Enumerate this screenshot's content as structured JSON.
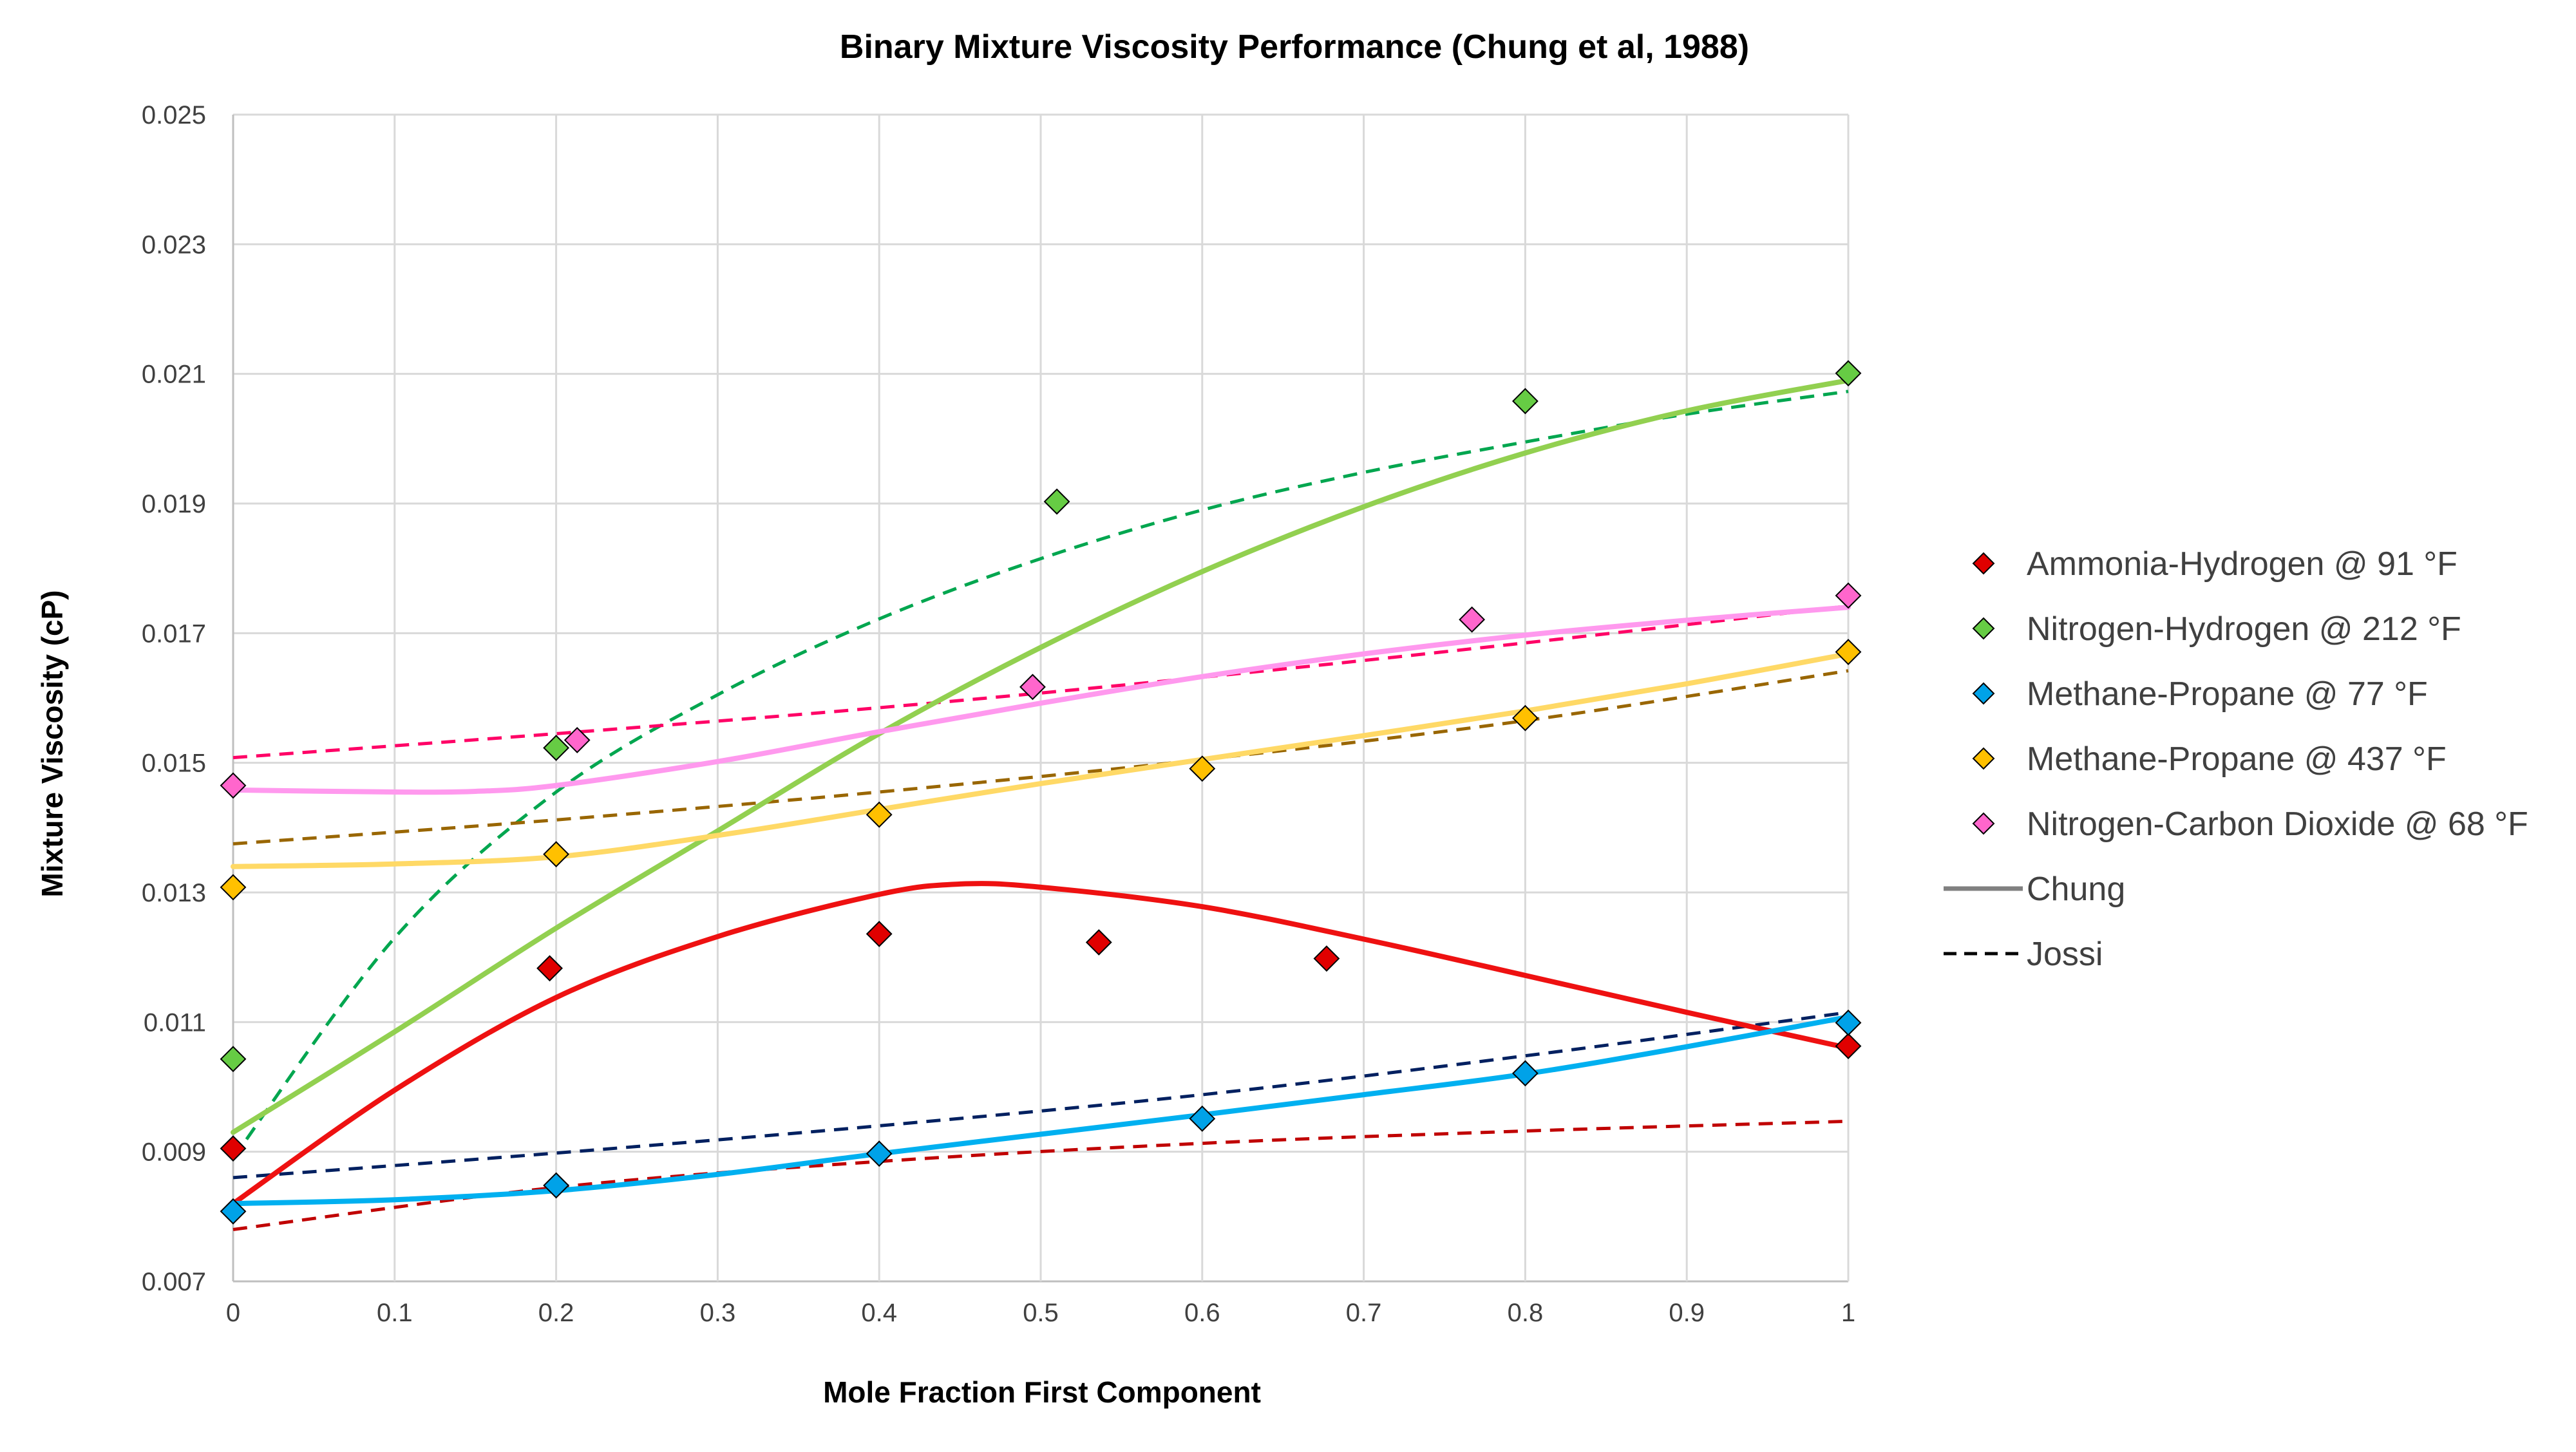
{
  "chart_data": {
    "type": "scatter",
    "title": "Binary Mixture Viscosity Performance (Chung et al, 1988)",
    "xlabel": "Mole Fraction First Component",
    "ylabel": "Mixture Viscosity (cP)",
    "xlim": [
      0,
      1
    ],
    "ylim": [
      0.007,
      0.025
    ],
    "x_ticks": [
      0,
      0.1,
      0.2,
      0.3,
      0.4,
      0.5,
      0.6,
      0.7,
      0.8,
      0.9,
      1
    ],
    "x_tick_labels": [
      "0",
      "0.1",
      "0.2",
      "0.3",
      "0.4",
      "0.5",
      "0.6",
      "0.7",
      "0.8",
      "0.9",
      "1"
    ],
    "y_ticks": [
      0.007,
      0.009,
      0.011,
      0.013,
      0.015,
      0.017,
      0.019,
      0.021,
      0.023,
      0.025
    ],
    "y_tick_labels": [
      "0.007",
      "0.009",
      "0.011",
      "0.013",
      "0.015",
      "0.017",
      "0.019",
      "0.021",
      "0.023",
      "0.025"
    ],
    "grid": true,
    "legend_position": "right",
    "series": [
      {
        "name": "Ammonia-Hydrogen @ 91 °F",
        "color": "#e00000",
        "chung_color": "#ee1111",
        "jossi_color": "#c00000",
        "points": [
          [
            0,
            0.00905
          ],
          [
            0.196,
            0.01183
          ],
          [
            0.4,
            0.01236
          ],
          [
            0.536,
            0.01223
          ],
          [
            0.677,
            0.01198
          ],
          [
            1,
            0.01063
          ]
        ],
        "chung": [
          [
            0,
            0.0082
          ],
          [
            0.1,
            0.00995
          ],
          [
            0.2,
            0.01138
          ],
          [
            0.3,
            0.01232
          ],
          [
            0.4,
            0.01297
          ],
          [
            0.45,
            0.01313
          ],
          [
            0.5,
            0.01308
          ],
          [
            0.6,
            0.01278
          ],
          [
            0.7,
            0.01228
          ],
          [
            0.8,
            0.01172
          ],
          [
            0.9,
            0.01115
          ],
          [
            1,
            0.0106
          ]
        ],
        "jossi": [
          [
            0,
            0.0078
          ],
          [
            0.2,
            0.00845
          ],
          [
            0.4,
            0.00885
          ],
          [
            0.6,
            0.00913
          ],
          [
            0.8,
            0.00932
          ],
          [
            1,
            0.00947
          ]
        ]
      },
      {
        "name": "Nitrogen-Hydrogen @ 212 °F",
        "color": "#66cc44",
        "chung_color": "#92d050",
        "jossi_color": "#00a64f",
        "points": [
          [
            0,
            0.01043
          ],
          [
            0.2,
            0.01523
          ],
          [
            0.51,
            0.01903
          ],
          [
            0.8,
            0.02058
          ],
          [
            1,
            0.02101
          ]
        ],
        "chung": [
          [
            0,
            0.0093
          ],
          [
            0.1,
            0.01085
          ],
          [
            0.2,
            0.01245
          ],
          [
            0.3,
            0.01395
          ],
          [
            0.4,
            0.01545
          ],
          [
            0.5,
            0.01678
          ],
          [
            0.6,
            0.01795
          ],
          [
            0.7,
            0.01895
          ],
          [
            0.8,
            0.01978
          ],
          [
            0.9,
            0.02043
          ],
          [
            1,
            0.0209
          ]
        ],
        "jossi": [
          [
            0,
            0.0089
          ],
          [
            0.1,
            0.0123
          ],
          [
            0.2,
            0.01455
          ],
          [
            0.3,
            0.01605
          ],
          [
            0.4,
            0.01722
          ],
          [
            0.5,
            0.01815
          ],
          [
            0.6,
            0.0189
          ],
          [
            0.7,
            0.01948
          ],
          [
            0.8,
            0.01995
          ],
          [
            0.9,
            0.02038
          ],
          [
            1,
            0.02073
          ]
        ]
      },
      {
        "name": "Methane-Propane @ 77 °F",
        "color": "#00a2e8",
        "chung_color": "#00b0f0",
        "jossi_color": "#002060",
        "points": [
          [
            0,
            0.00808
          ],
          [
            0.2,
            0.00848
          ],
          [
            0.4,
            0.00897
          ],
          [
            0.6,
            0.00951
          ],
          [
            0.8,
            0.01021
          ],
          [
            1,
            0.01099
          ]
        ],
        "chung": [
          [
            0,
            0.0082
          ],
          [
            0.1,
            0.00826
          ],
          [
            0.2,
            0.0084
          ],
          [
            0.3,
            0.00865
          ],
          [
            0.4,
            0.00897
          ],
          [
            0.5,
            0.00927
          ],
          [
            0.6,
            0.00957
          ],
          [
            0.7,
            0.00988
          ],
          [
            0.8,
            0.0102
          ],
          [
            0.9,
            0.01062
          ],
          [
            1,
            0.01108
          ]
        ],
        "jossi": [
          [
            0,
            0.0086
          ],
          [
            0.2,
            0.00898
          ],
          [
            0.4,
            0.0094
          ],
          [
            0.6,
            0.00988
          ],
          [
            0.8,
            0.01048
          ],
          [
            1,
            0.01115
          ]
        ]
      },
      {
        "name": "Methane-Propane @ 437 °F",
        "color": "#ffc000",
        "chung_color": "#ffd966",
        "jossi_color": "#996600",
        "points": [
          [
            0,
            0.01308
          ],
          [
            0.2,
            0.01359
          ],
          [
            0.4,
            0.0142
          ],
          [
            0.6,
            0.01491
          ],
          [
            0.8,
            0.01569
          ],
          [
            1,
            0.01671
          ]
        ],
        "chung": [
          [
            0,
            0.0134
          ],
          [
            0.1,
            0.01344
          ],
          [
            0.2,
            0.01355
          ],
          [
            0.3,
            0.01388
          ],
          [
            0.4,
            0.01428
          ],
          [
            0.5,
            0.01468
          ],
          [
            0.6,
            0.01505
          ],
          [
            0.7,
            0.01542
          ],
          [
            0.8,
            0.0158
          ],
          [
            0.9,
            0.01622
          ],
          [
            1,
            0.01668
          ]
        ],
        "jossi": [
          [
            0,
            0.01375
          ],
          [
            0.2,
            0.01412
          ],
          [
            0.4,
            0.01455
          ],
          [
            0.6,
            0.01505
          ],
          [
            0.8,
            0.01565
          ],
          [
            1,
            0.01642
          ]
        ]
      },
      {
        "name": "Nitrogen-Carbon Dioxide @ 68 °F",
        "color": "#ff66cc",
        "chung_color": "#ff99ee",
        "jossi_color": "#ff0066",
        "points": [
          [
            0,
            0.01465
          ],
          [
            0.213,
            0.01535
          ],
          [
            0.495,
            0.01617
          ],
          [
            0.767,
            0.01721
          ],
          [
            1,
            0.01758
          ]
        ],
        "chung": [
          [
            0,
            0.01458
          ],
          [
            0.1,
            0.01455
          ],
          [
            0.15,
            0.01456
          ],
          [
            0.2,
            0.01465
          ],
          [
            0.3,
            0.01502
          ],
          [
            0.4,
            0.01548
          ],
          [
            0.5,
            0.01592
          ],
          [
            0.6,
            0.01633
          ],
          [
            0.7,
            0.01668
          ],
          [
            0.8,
            0.01697
          ],
          [
            0.9,
            0.0172
          ],
          [
            1,
            0.0174
          ]
        ],
        "jossi": [
          [
            0,
            0.01508
          ],
          [
            0.2,
            0.01545
          ],
          [
            0.4,
            0.01585
          ],
          [
            0.6,
            0.01632
          ],
          [
            0.8,
            0.01685
          ],
          [
            1,
            0.01742
          ]
        ]
      }
    ],
    "legend_extra": [
      {
        "label": "Chung",
        "style": "solid",
        "color": "#808080"
      },
      {
        "label": "Jossi",
        "style": "dashed",
        "color": "#000000"
      }
    ]
  }
}
